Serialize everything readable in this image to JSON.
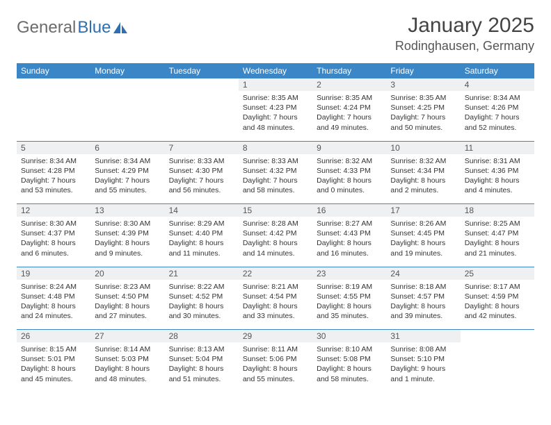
{
  "logo": {
    "part1": "General",
    "part2": "Blue"
  },
  "title": "January 2025",
  "location": "Rodinghausen, Germany",
  "colors": {
    "header_bg": "#3b86c6",
    "header_text": "#ffffff",
    "daynum_bg": "#eef0f2",
    "border": "#3b86c6",
    "logo_gray": "#6b6b6b",
    "logo_blue": "#2f6fb0"
  },
  "daysOfWeek": [
    "Sunday",
    "Monday",
    "Tuesday",
    "Wednesday",
    "Thursday",
    "Friday",
    "Saturday"
  ],
  "weeks": [
    [
      null,
      null,
      null,
      {
        "n": "1",
        "sr": "8:35 AM",
        "ss": "4:23 PM",
        "dl": "7 hours and 48 minutes."
      },
      {
        "n": "2",
        "sr": "8:35 AM",
        "ss": "4:24 PM",
        "dl": "7 hours and 49 minutes."
      },
      {
        "n": "3",
        "sr": "8:35 AM",
        "ss": "4:25 PM",
        "dl": "7 hours and 50 minutes."
      },
      {
        "n": "4",
        "sr": "8:34 AM",
        "ss": "4:26 PM",
        "dl": "7 hours and 52 minutes."
      }
    ],
    [
      {
        "n": "5",
        "sr": "8:34 AM",
        "ss": "4:28 PM",
        "dl": "7 hours and 53 minutes."
      },
      {
        "n": "6",
        "sr": "8:34 AM",
        "ss": "4:29 PM",
        "dl": "7 hours and 55 minutes."
      },
      {
        "n": "7",
        "sr": "8:33 AM",
        "ss": "4:30 PM",
        "dl": "7 hours and 56 minutes."
      },
      {
        "n": "8",
        "sr": "8:33 AM",
        "ss": "4:32 PM",
        "dl": "7 hours and 58 minutes."
      },
      {
        "n": "9",
        "sr": "8:32 AM",
        "ss": "4:33 PM",
        "dl": "8 hours and 0 minutes."
      },
      {
        "n": "10",
        "sr": "8:32 AM",
        "ss": "4:34 PM",
        "dl": "8 hours and 2 minutes."
      },
      {
        "n": "11",
        "sr": "8:31 AM",
        "ss": "4:36 PM",
        "dl": "8 hours and 4 minutes."
      }
    ],
    [
      {
        "n": "12",
        "sr": "8:30 AM",
        "ss": "4:37 PM",
        "dl": "8 hours and 6 minutes."
      },
      {
        "n": "13",
        "sr": "8:30 AM",
        "ss": "4:39 PM",
        "dl": "8 hours and 9 minutes."
      },
      {
        "n": "14",
        "sr": "8:29 AM",
        "ss": "4:40 PM",
        "dl": "8 hours and 11 minutes."
      },
      {
        "n": "15",
        "sr": "8:28 AM",
        "ss": "4:42 PM",
        "dl": "8 hours and 14 minutes."
      },
      {
        "n": "16",
        "sr": "8:27 AM",
        "ss": "4:43 PM",
        "dl": "8 hours and 16 minutes."
      },
      {
        "n": "17",
        "sr": "8:26 AM",
        "ss": "4:45 PM",
        "dl": "8 hours and 19 minutes."
      },
      {
        "n": "18",
        "sr": "8:25 AM",
        "ss": "4:47 PM",
        "dl": "8 hours and 21 minutes."
      }
    ],
    [
      {
        "n": "19",
        "sr": "8:24 AM",
        "ss": "4:48 PM",
        "dl": "8 hours and 24 minutes."
      },
      {
        "n": "20",
        "sr": "8:23 AM",
        "ss": "4:50 PM",
        "dl": "8 hours and 27 minutes."
      },
      {
        "n": "21",
        "sr": "8:22 AM",
        "ss": "4:52 PM",
        "dl": "8 hours and 30 minutes."
      },
      {
        "n": "22",
        "sr": "8:21 AM",
        "ss": "4:54 PM",
        "dl": "8 hours and 33 minutes."
      },
      {
        "n": "23",
        "sr": "8:19 AM",
        "ss": "4:55 PM",
        "dl": "8 hours and 35 minutes."
      },
      {
        "n": "24",
        "sr": "8:18 AM",
        "ss": "4:57 PM",
        "dl": "8 hours and 39 minutes."
      },
      {
        "n": "25",
        "sr": "8:17 AM",
        "ss": "4:59 PM",
        "dl": "8 hours and 42 minutes."
      }
    ],
    [
      {
        "n": "26",
        "sr": "8:15 AM",
        "ss": "5:01 PM",
        "dl": "8 hours and 45 minutes."
      },
      {
        "n": "27",
        "sr": "8:14 AM",
        "ss": "5:03 PM",
        "dl": "8 hours and 48 minutes."
      },
      {
        "n": "28",
        "sr": "8:13 AM",
        "ss": "5:04 PM",
        "dl": "8 hours and 51 minutes."
      },
      {
        "n": "29",
        "sr": "8:11 AM",
        "ss": "5:06 PM",
        "dl": "8 hours and 55 minutes."
      },
      {
        "n": "30",
        "sr": "8:10 AM",
        "ss": "5:08 PM",
        "dl": "8 hours and 58 minutes."
      },
      {
        "n": "31",
        "sr": "8:08 AM",
        "ss": "5:10 PM",
        "dl": "9 hours and 1 minute."
      },
      null
    ]
  ],
  "labels": {
    "sunrise": "Sunrise:",
    "sunset": "Sunset:",
    "daylight": "Daylight:"
  }
}
